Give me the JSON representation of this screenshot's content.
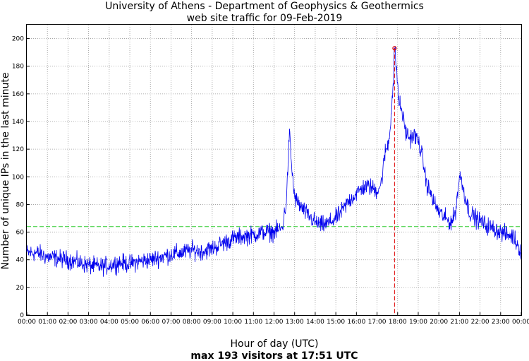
{
  "chart_data": {
    "type": "line",
    "title": "University of Athens - Department of Geophysics & Geothermics",
    "subtitle": "web site traffic for 09-Feb-2019",
    "xlabel": "Hour of day (UTC)",
    "footer": "max 193 visitors at 17:51 UTC",
    "ylabel": "Number of unique IPs in the last minute",
    "xlim": [
      0,
      24
    ],
    "ylim": [
      0,
      210
    ],
    "x_ticks": [
      "00:00",
      "01:00",
      "02:00",
      "03:00",
      "04:00",
      "05:00",
      "06:00",
      "07:00",
      "08:00",
      "09:00",
      "10:00",
      "11:00",
      "12:00",
      "13:00",
      "14:00",
      "15:00",
      "16:00",
      "17:00",
      "18:00",
      "19:00",
      "20:00",
      "21:00",
      "22:00",
      "23:00",
      "00:00"
    ],
    "y_ticks": [
      0,
      20,
      40,
      60,
      80,
      100,
      120,
      140,
      160,
      180,
      200
    ],
    "grid": true,
    "series": [
      {
        "color": "#0000ee",
        "x": [
          0,
          0.5,
          1,
          1.5,
          2,
          2.5,
          3,
          3.5,
          4,
          4.5,
          5,
          5.5,
          6,
          6.5,
          7,
          7.5,
          8,
          8.5,
          9,
          9.5,
          10,
          10.5,
          11,
          11.5,
          12,
          12.4,
          12.6,
          12.75,
          12.85,
          13,
          13.3,
          13.6,
          14,
          14.3,
          14.6,
          15,
          15.3,
          15.6,
          16,
          16.3,
          16.6,
          17,
          17.2,
          17.4,
          17.5,
          17.6,
          17.7,
          17.8,
          17.85,
          17.95,
          18.05,
          18.2,
          18.4,
          18.6,
          18.8,
          19,
          19.2,
          19.4,
          19.6,
          19.8,
          20,
          20.3,
          20.6,
          20.8,
          21,
          21.1,
          21.3,
          21.5,
          21.8,
          22,
          22.3,
          22.6,
          23,
          23.3,
          23.6,
          23.8,
          24
        ],
        "y": [
          45,
          45,
          42,
          41,
          40,
          38,
          36,
          35,
          36,
          38,
          37,
          39,
          40,
          42,
          44,
          45,
          47,
          46,
          48,
          52,
          55,
          57,
          58,
          60,
          60,
          63,
          82,
          132,
          108,
          85,
          78,
          73,
          67,
          65,
          66,
          70,
          75,
          82,
          88,
          92,
          93,
          90,
          95,
          118,
          122,
          128,
          150,
          170,
          193,
          178,
          155,
          148,
          132,
          128,
          130,
          126,
          115,
          95,
          88,
          80,
          75,
          70,
          67,
          74,
          100,
          98,
          84,
          74,
          70,
          68,
          65,
          63,
          60,
          58,
          57,
          52,
          46
        ],
        "noise": 4
      }
    ],
    "mean_line": {
      "value": 64,
      "color": "#2ecc2e",
      "style": "dashed"
    },
    "peak": {
      "x": 17.85,
      "y": 193,
      "marker_color": "#dd0000",
      "line_style": "dashed"
    }
  }
}
